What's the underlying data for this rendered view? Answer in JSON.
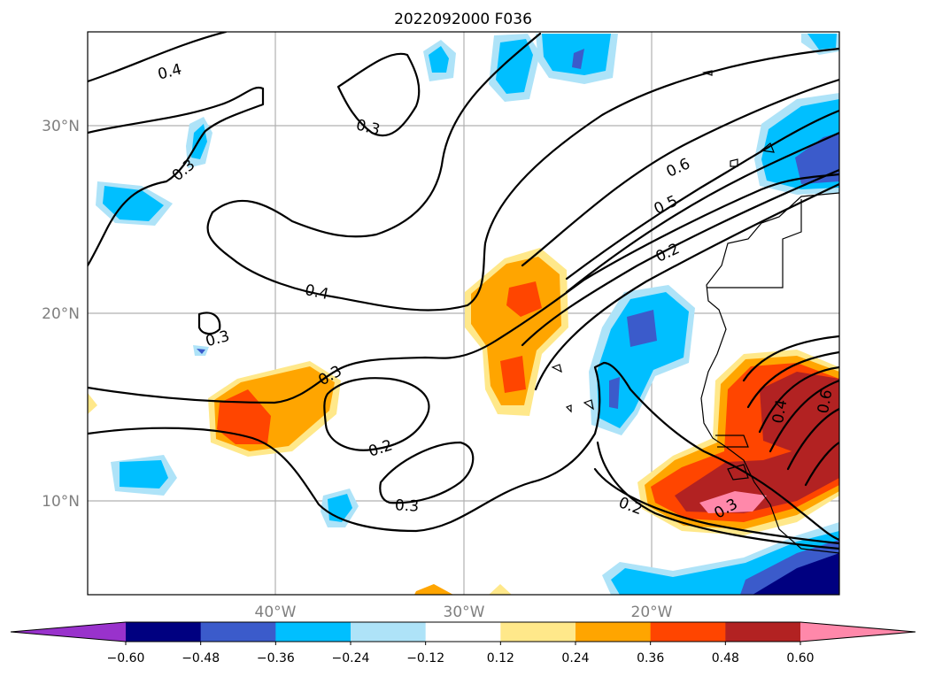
{
  "title": "2022092000 F036",
  "map": {
    "lat_ticks": [
      "30°N",
      "20°N",
      "10°N"
    ],
    "lon_ticks": [
      "40°W",
      "30°W",
      "20°W"
    ],
    "grid": true,
    "contour_labels": [
      "0.4",
      "0.3",
      "0.3",
      "0.3",
      "0.4",
      "0.3",
      "0.2",
      "0.3",
      "0.6",
      "0.5",
      "0.2",
      "0.2",
      "0.3",
      "0.4",
      "0.6"
    ],
    "shade_colors": {
      "deep_purple": "#9932cc",
      "navy": "#000080",
      "royal_blue": "#3b5bcb",
      "deep_sky_blue": "#00bfff",
      "light_sky_blue": "#aee3f8",
      "white": "#ffffff",
      "light_yellow": "#ffe88a",
      "orange": "#ffa500",
      "orange_red": "#ff4500",
      "firebrick": "#b22222",
      "pink": "#ff88aa"
    }
  },
  "colorbar": {
    "extend": "both",
    "colors": [
      "#9932cc",
      "#000080",
      "#3b5bcb",
      "#00bfff",
      "#aee3f8",
      "#ffffff",
      "#ffe88a",
      "#ffa500",
      "#ff4500",
      "#b22222",
      "#ff88aa"
    ],
    "tick_labels": [
      "−0.60",
      "−0.48",
      "−0.36",
      "−0.24",
      "−0.12",
      "0.12",
      "0.24",
      "0.36",
      "0.48",
      "0.60"
    ]
  }
}
